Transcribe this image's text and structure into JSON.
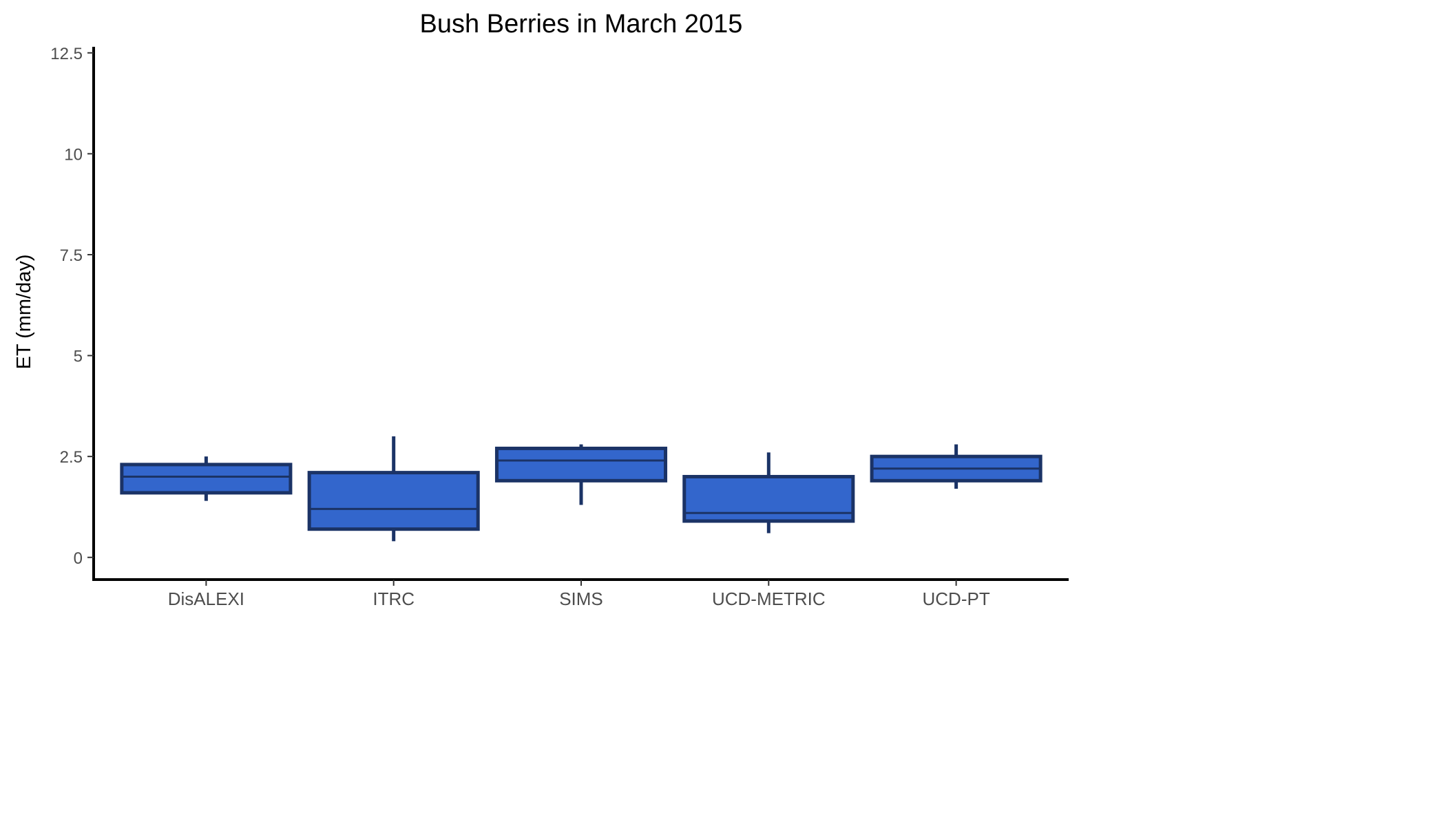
{
  "chart_data": {
    "type": "boxplot",
    "title": "Bush Berries in March 2015",
    "xlabel": "",
    "ylabel": "ET (mm/day)",
    "ylim": [
      -0.55,
      12.65
    ],
    "yticks": [
      0,
      2.5,
      5,
      7.5,
      10,
      12.5
    ],
    "ytick_labels": [
      "0",
      "2.5",
      "5",
      "7.5",
      "10",
      "12.5"
    ],
    "categories": [
      "DisALEXI",
      "ITRC",
      "SIMS",
      "UCD-METRIC",
      "UCD-PT"
    ],
    "boxes": [
      {
        "category": "DisALEXI",
        "min": 1.4,
        "q1": 1.6,
        "median": 2.0,
        "q3": 2.3,
        "max": 2.5
      },
      {
        "category": "ITRC",
        "min": 0.4,
        "q1": 0.7,
        "median": 1.2,
        "q3": 2.1,
        "max": 3.0
      },
      {
        "category": "SIMS",
        "min": 1.3,
        "q1": 1.9,
        "median": 2.4,
        "q3": 2.7,
        "max": 2.8
      },
      {
        "category": "UCD-METRIC",
        "min": 0.6,
        "q1": 0.9,
        "median": 1.1,
        "q3": 2.0,
        "max": 2.6
      },
      {
        "category": "UCD-PT",
        "min": 1.7,
        "q1": 1.9,
        "median": 2.2,
        "q3": 2.5,
        "max": 2.8
      }
    ],
    "grid": false,
    "colors": {
      "fill": "#3366CC",
      "outline": "#1B3366",
      "axis": "#000000"
    }
  }
}
